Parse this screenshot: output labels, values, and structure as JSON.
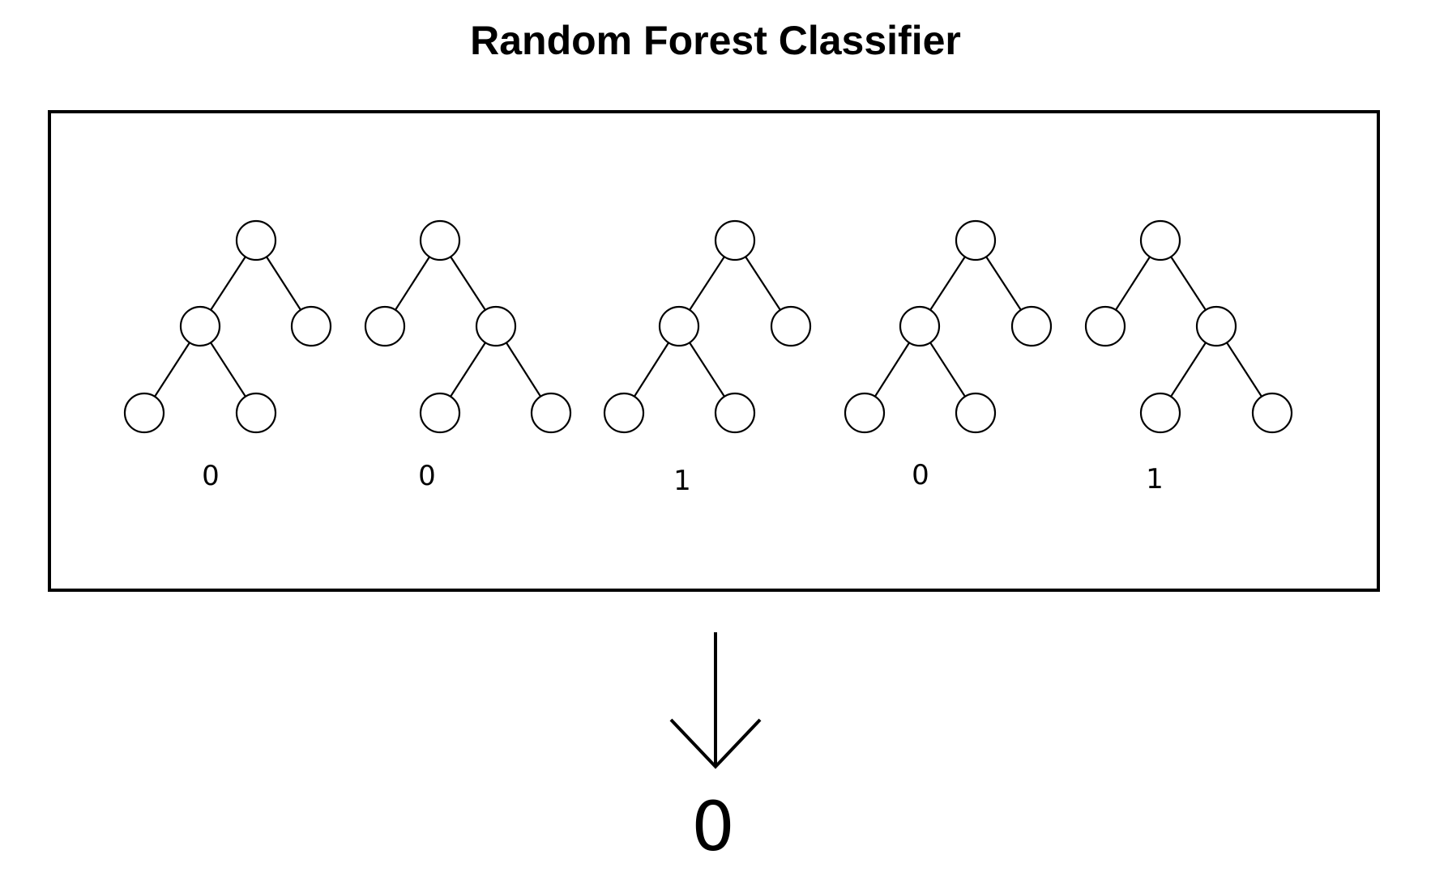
{
  "title": "Random Forest Classifier",
  "trees": [
    {
      "prediction": "0"
    },
    {
      "prediction": "0"
    },
    {
      "prediction": "1"
    },
    {
      "prediction": "0"
    },
    {
      "prediction": "1"
    }
  ],
  "final_prediction": "0"
}
